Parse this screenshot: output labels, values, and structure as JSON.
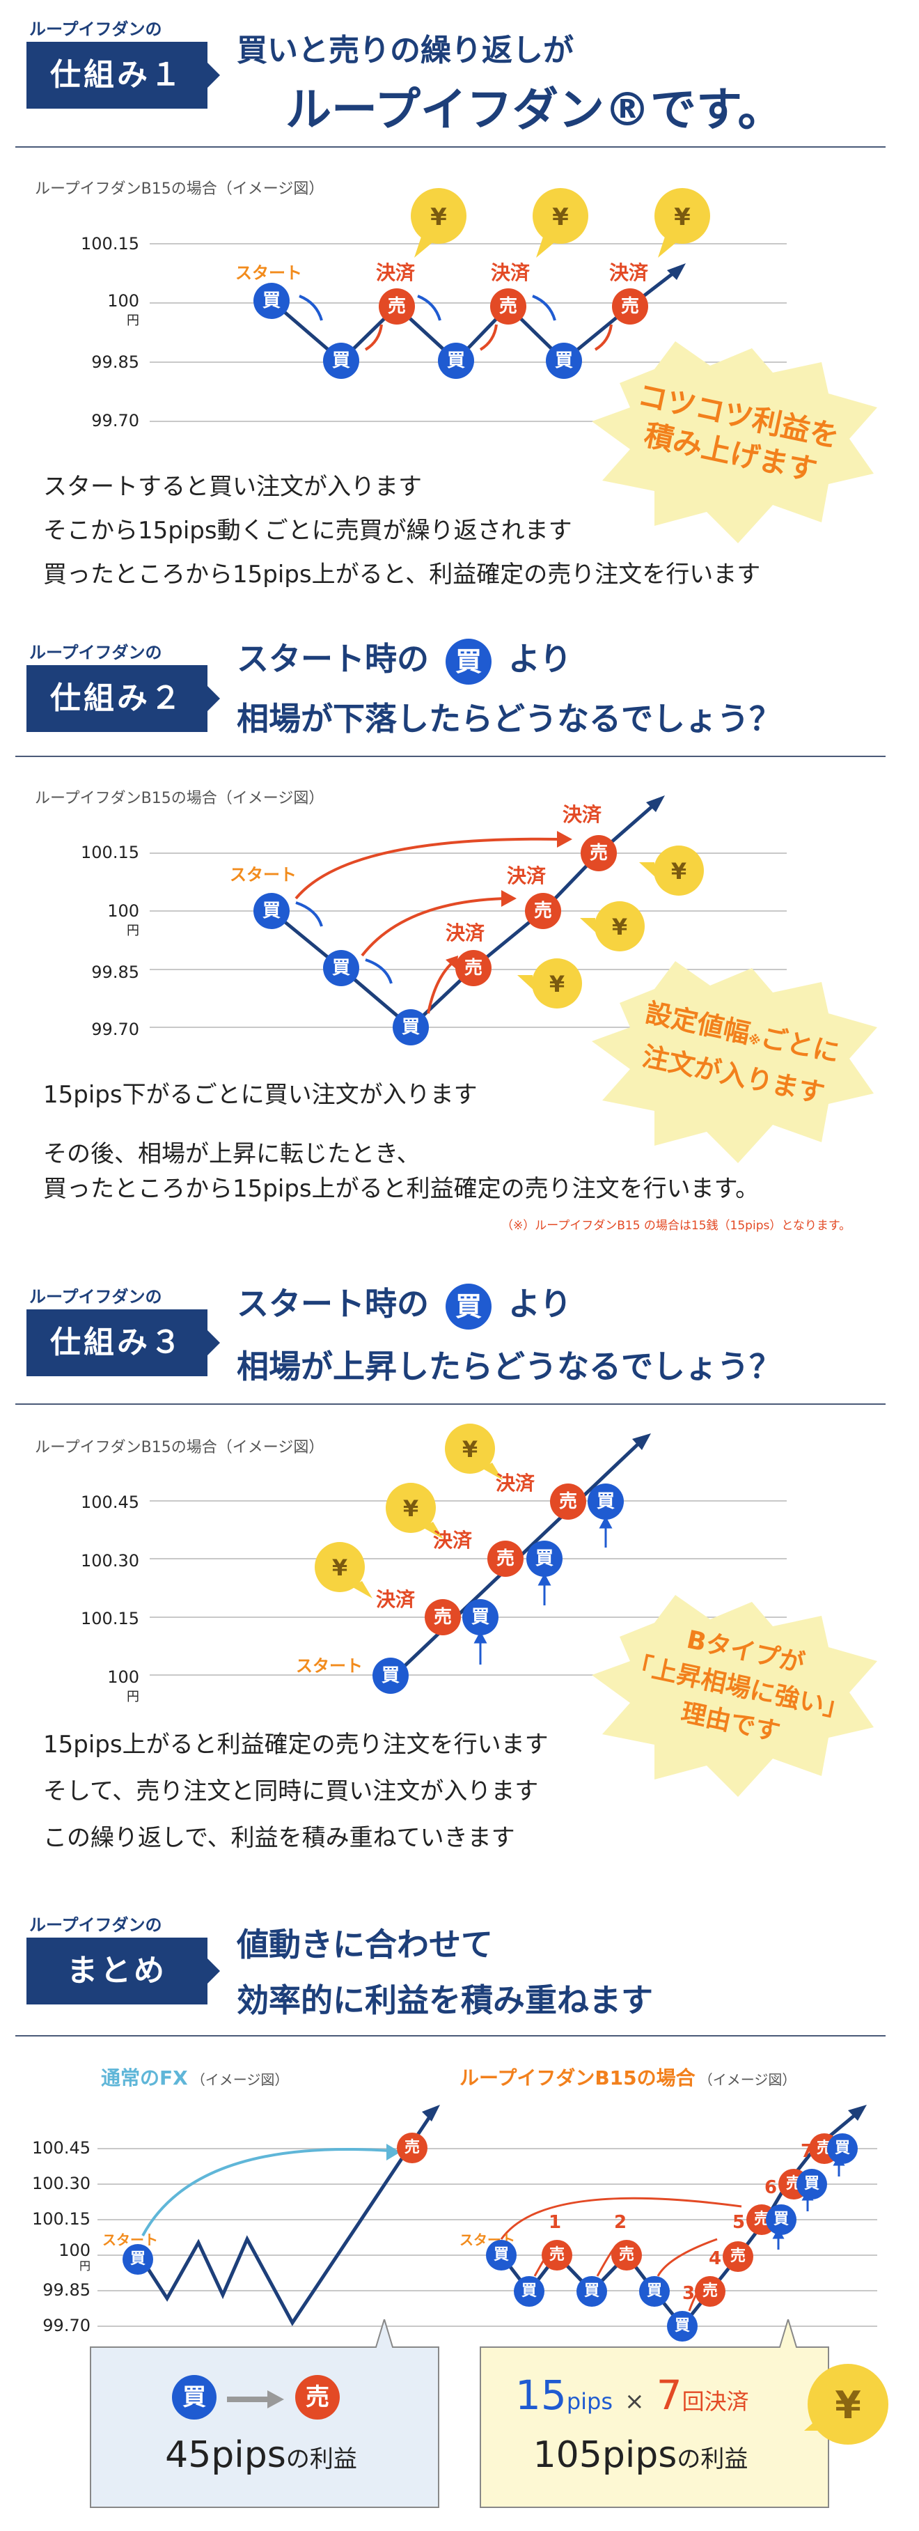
{
  "product_name": "ループイフダン",
  "sections": [
    {
      "sub": "ループイフダンの",
      "badge": "仕組み１",
      "title_line1": "買いと売りの繰り返しが",
      "title_line2": "ループイフダン®です。",
      "chart_caption": "ループイフダンB15の場合（イメージ図）",
      "ticks": [
        "100.15",
        "100",
        "円",
        "99.85",
        "99.70"
      ],
      "start_label": "スタート",
      "settle_label": "決済",
      "buy": "買",
      "sell": "売",
      "yen": "¥",
      "burst": [
        "コツコツ利益を",
        "積み上げます"
      ],
      "lines": [
        "スタートすると買い注文が入ります",
        "そこから15pips動くごとに売買が繰り返されます",
        "買ったところから15pips上がると、利益確定の売り注文を行います"
      ]
    },
    {
      "sub": "ループイフダンの",
      "badge": "仕組み２",
      "title_line1_a": "スタート時の",
      "title_line1_b": "より",
      "title_line2": "相場が下落したらどうなるでしょう？",
      "chart_caption": "ループイフダンB15の場合（イメージ図）",
      "ticks": [
        "100.15",
        "100",
        "円",
        "99.85",
        "99.70"
      ],
      "burst": [
        "設定値幅",
        "※",
        "ごとに",
        "注文が入ります"
      ],
      "lines": [
        "15pips下がるごとに買い注文が入ります",
        "その後、相場が上昇に転じたとき、",
        "買ったところから15pips上がると利益確定の売り注文を行います。"
      ],
      "note": "（※）ループイフダンB15 の場合は15銭（15pips）となります。"
    },
    {
      "sub": "ループイフダンの",
      "badge": "仕組み３",
      "title_line1_a": "スタート時の",
      "title_line1_b": "より",
      "title_line2": "相場が上昇したらどうなるでしょう？",
      "chart_caption": "ループイフダンB15の場合（イメージ図）",
      "ticks": [
        "100.45",
        "100.30",
        "100.15",
        "100",
        "円"
      ],
      "burst": [
        "Bタイプが",
        "「上昇相場に強い」",
        "理由です"
      ],
      "lines": [
        "15pips上がると利益確定の売り注文を行います",
        "そして、売り注文と同時に買い注文が入ります",
        "この繰り返しで、利益を積み重ねていきます"
      ]
    },
    {
      "sub": "ループイフダンの",
      "badge": "まとめ",
      "title_line1": "値動きに合わせて",
      "title_line2": "効率的に利益を積み重ねます",
      "left_title": "通常のFX",
      "left_caption": "（イメージ図）",
      "right_title": "ループイフダンB15の場合",
      "right_caption": "（イメージ図）",
      "ticks": [
        "100.45",
        "100.30",
        "100.15",
        "100",
        "円",
        "99.85",
        "99.70"
      ],
      "numbers": [
        "1",
        "2",
        "3",
        "4",
        "5",
        "6",
        "7"
      ],
      "left_box_result": "45pipsの利益",
      "left_box_pips": "45pips",
      "left_box_suffix": "の利益",
      "right_box_a": "15",
      "right_box_pips": "pips",
      "right_box_times": "×",
      "right_box_b": "7",
      "right_box_c": "回決済",
      "right_box_result_num": "105pips",
      "right_box_result_suffix": "の利益"
    }
  ],
  "colors": {
    "navy": "#1d3f7a",
    "buy": "#1f5bd1",
    "sell": "#e34a25",
    "start": "#f28b1c",
    "yen": "#f7d340"
  }
}
